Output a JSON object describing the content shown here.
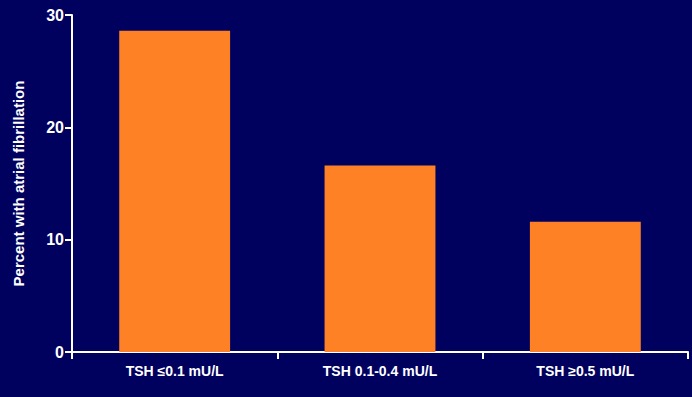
{
  "chart_data": {
    "type": "bar",
    "y_label": "Percent with atrial fibrillation",
    "categories": [
      "TSH ≤0.1 mU/L",
      "TSH 0.1-0.4 mU/L",
      "TSH ≥0.5 mU/L"
    ],
    "values": [
      28.6,
      16.6,
      11.6
    ],
    "color": "#ff8126",
    "ylim": [
      0,
      30
    ],
    "yticks": [
      0,
      10,
      20,
      30
    ],
    "grid": false
  }
}
